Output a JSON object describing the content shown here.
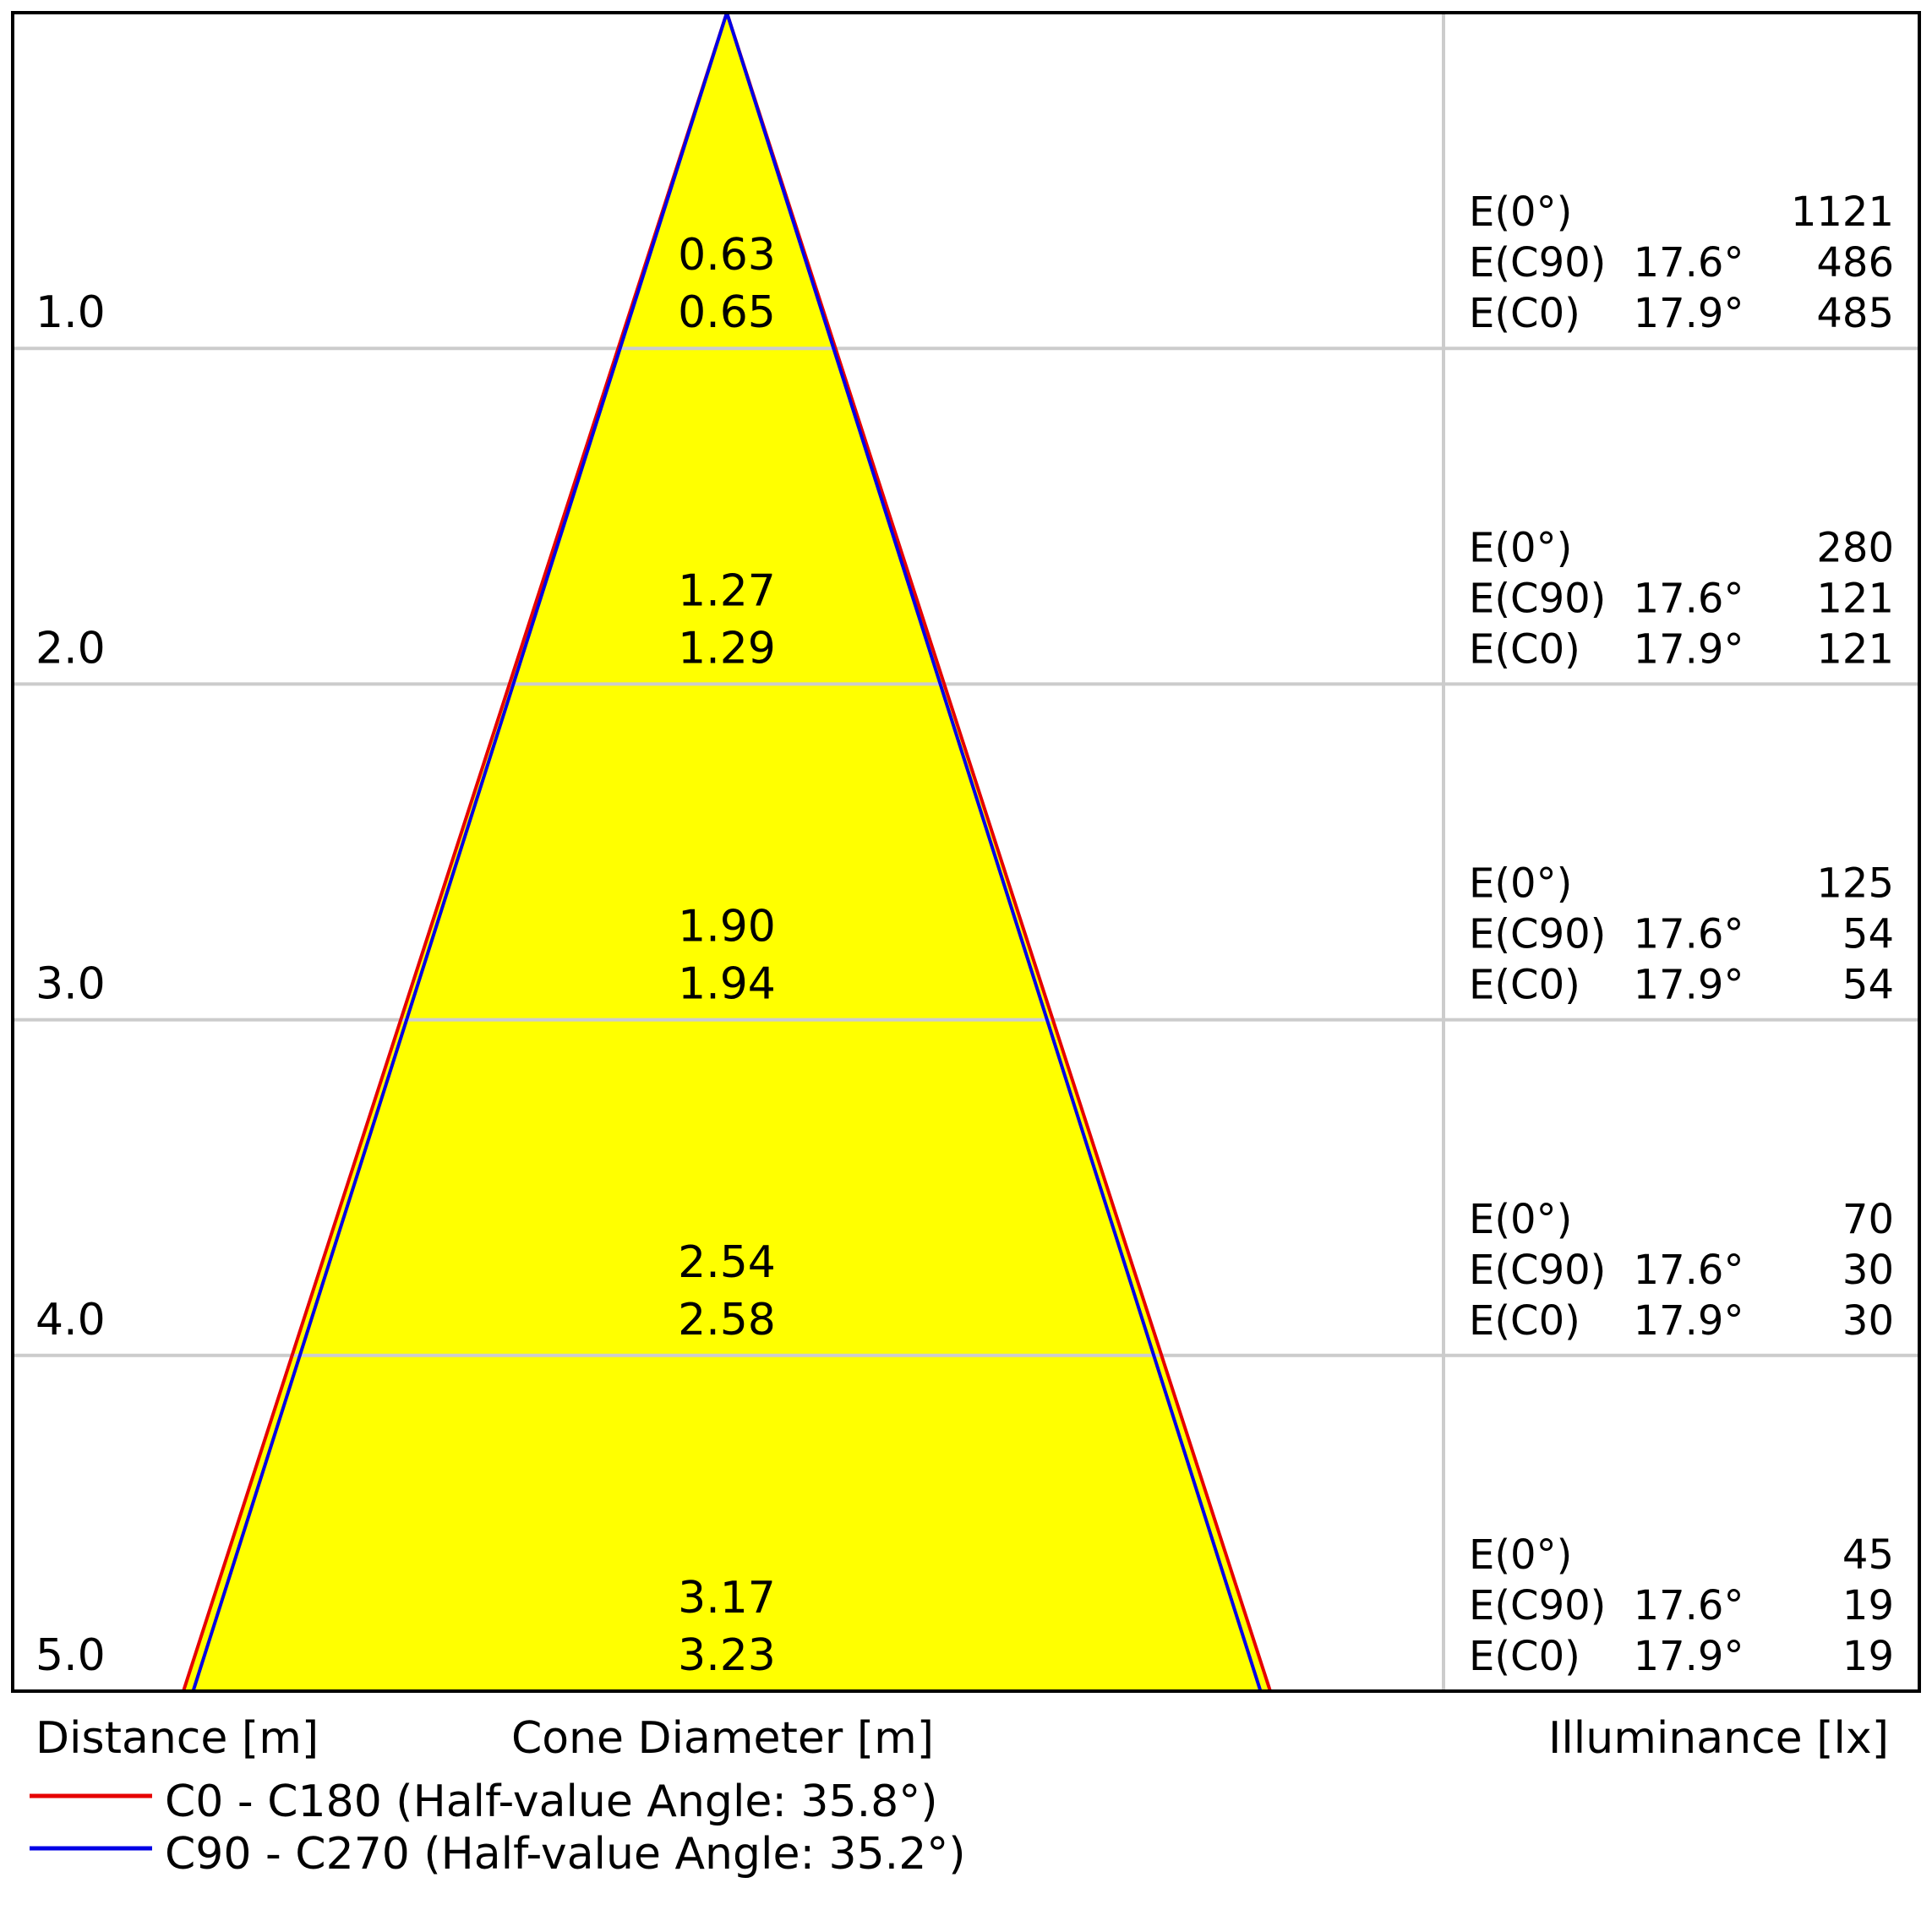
{
  "chart_data": {
    "type": "cone-diagram",
    "title": "",
    "xlabel": "Cone Diameter [m]",
    "ylabel": "Distance [m]",
    "right_label": "Illuminance [lx]",
    "distance_range": [
      0,
      5
    ],
    "grid": true,
    "colors": {
      "cone_fill": "#ffff00",
      "c0_line": "#e60000",
      "c90_line": "#0000e6",
      "grid": "#cccccc",
      "frame": "#000000"
    },
    "legend_position": "bottom-left",
    "series": [
      {
        "name": "C0 - C180 (Half-value Angle: 35.8°)",
        "half_value_angle": 35.8,
        "color": "#e60000"
      },
      {
        "name": "C90 - C270 (Half-value Angle: 35.2°)",
        "half_value_angle": 35.2,
        "color": "#0000e6"
      }
    ],
    "rows": [
      {
        "distance": "1.0",
        "d_value": 1.0,
        "diameter_c90": "0.63",
        "diameter_c0": "0.65",
        "e0_label": "E(0°)",
        "e0": "1121",
        "ec90_label": "E(C90)",
        "ec90_angle": "17.6°",
        "ec90": "486",
        "ec0_label": "E(C0)",
        "ec0_angle": "17.9°",
        "ec0": "485"
      },
      {
        "distance": "2.0",
        "d_value": 2.0,
        "diameter_c90": "1.27",
        "diameter_c0": "1.29",
        "e0_label": "E(0°)",
        "e0": "280",
        "ec90_label": "E(C90)",
        "ec90_angle": "17.6°",
        "ec90": "121",
        "ec0_label": "E(C0)",
        "ec0_angle": "17.9°",
        "ec0": "121"
      },
      {
        "distance": "3.0",
        "d_value": 3.0,
        "diameter_c90": "1.90",
        "diameter_c0": "1.94",
        "e0_label": "E(0°)",
        "e0": "125",
        "ec90_label": "E(C90)",
        "ec90_angle": "17.6°",
        "ec90": "54",
        "ec0_label": "E(C0)",
        "ec0_angle": "17.9°",
        "ec0": "54"
      },
      {
        "distance": "4.0",
        "d_value": 4.0,
        "diameter_c90": "2.54",
        "diameter_c0": "2.58",
        "e0_label": "E(0°)",
        "e0": "70",
        "ec90_label": "E(C90)",
        "ec90_angle": "17.6°",
        "ec90": "30",
        "ec0_label": "E(C0)",
        "ec0_angle": "17.9°",
        "ec0": "30"
      },
      {
        "distance": "5.0",
        "d_value": 5.0,
        "diameter_c90": "3.17",
        "diameter_c0": "3.23",
        "e0_label": "E(0°)",
        "e0": "45",
        "ec90_label": "E(C90)",
        "ec90_angle": "17.6°",
        "ec90": "19",
        "ec0_label": "E(C0)",
        "ec0_angle": "17.9°",
        "ec0": "19"
      }
    ]
  }
}
